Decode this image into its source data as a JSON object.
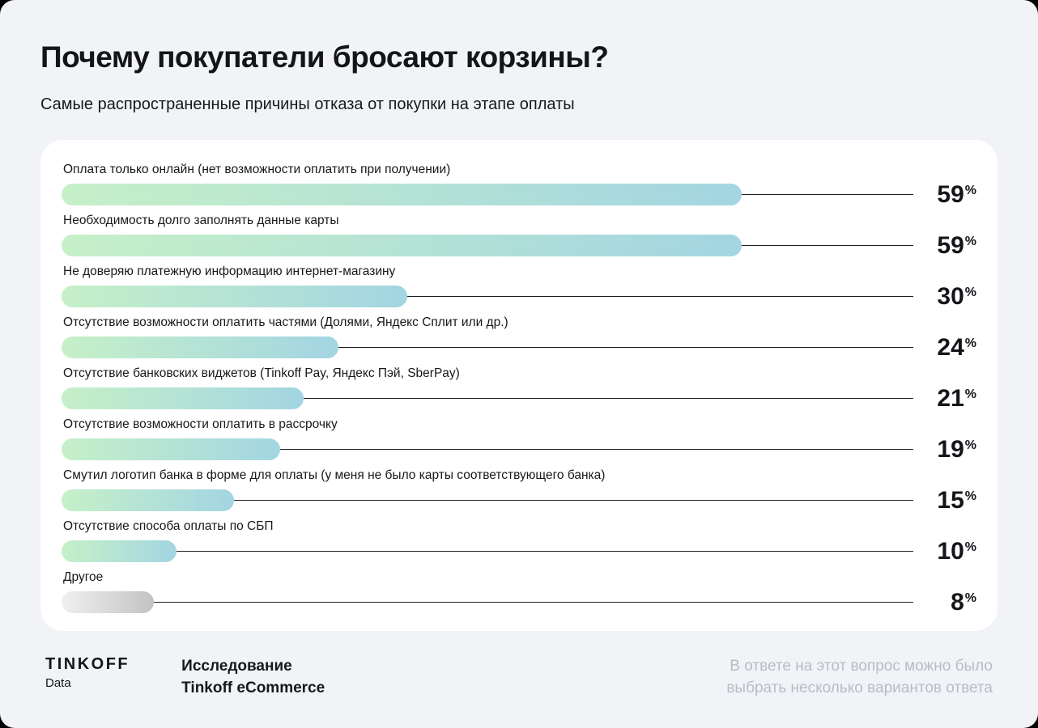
{
  "header": {
    "title": "Почему покупатели бросают корзины?",
    "subtitle": "Самые распространенные причины отказа от покупки на этапе оплаты"
  },
  "chart_data": {
    "type": "bar",
    "orientation": "horizontal",
    "title": "Почему покупатели бросают корзины?",
    "subtitle": "Самые распространенные причины отказа от покупки на этапе оплаты",
    "categories": [
      "Оплата только онлайн (нет возможности оплатить при получении)",
      "Необходимость долго заполнять данные карты",
      "Не доверяю платежную информацию интернет-магазину",
      "Отсутствие возможности оплатить частями (Долями, Яндекс Сплит или др.)",
      "Отсутствие банковских виджетов (Tinkoff Pay, Яндекс Пэй, SberPay)",
      "Отсутствие возможности оплатить в рассрочку",
      "Смутил логотип банка в форме для оплаты (у меня не было карты соответствующего банка)",
      "Отсутствие способа оплаты по СБП",
      "Другое"
    ],
    "values": [
      59,
      59,
      30,
      24,
      21,
      19,
      15,
      10,
      8
    ],
    "unit": "%",
    "xlim": [
      0,
      62
    ],
    "value_label_position": "right",
    "legend": "none",
    "grid": "off",
    "other_category_index": 8
  },
  "colors": {
    "background": "#f1f3f7",
    "card": "#ffffff",
    "bar_gradient": [
      "#c6f0c8",
      "#a3d5e2"
    ],
    "bar_gray_gradient": [
      "#f0f0f0",
      "#c3c3c3"
    ],
    "leader_line": "#1d1f23",
    "text": "#141519",
    "note_text": "#b7bdc7"
  },
  "footer": {
    "brand": "TINKOFF",
    "brand_sub": "Data",
    "source_line1": "Исследование",
    "source_line2": "Tinkoff eCommerce",
    "note_line1": "В ответе на этот вопрос можно было",
    "note_line2": "выбрать несколько вариантов ответа"
  }
}
